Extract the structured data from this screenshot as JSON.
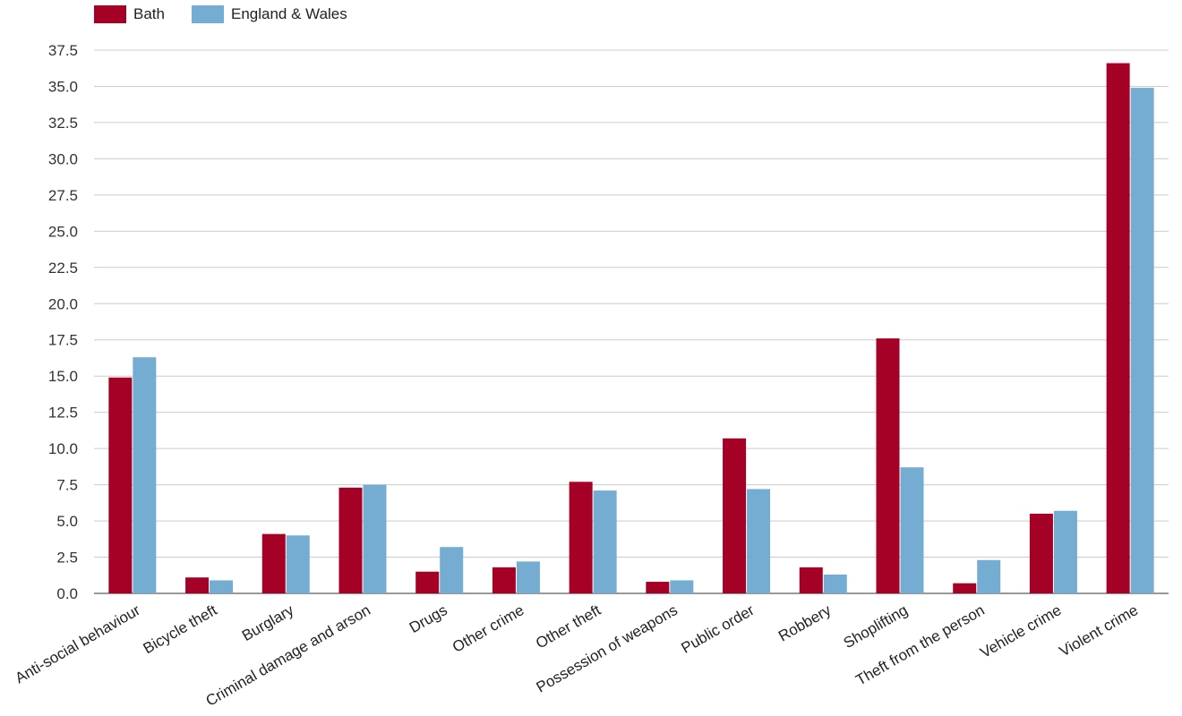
{
  "chart_data": {
    "type": "bar",
    "categories": [
      "Anti-social behaviour",
      "Bicycle theft",
      "Burglary",
      "Criminal damage and arson",
      "Drugs",
      "Other crime",
      "Other theft",
      "Possession of weapons",
      "Public order",
      "Robbery",
      "Shoplifting",
      "Theft from the person",
      "Vehicle crime",
      "Violent crime"
    ],
    "series": [
      {
        "name": "Bath",
        "color": "#a50026",
        "values": [
          14.9,
          1.1,
          4.1,
          7.3,
          1.5,
          1.8,
          7.7,
          0.8,
          10.7,
          1.8,
          17.6,
          0.7,
          5.5,
          36.6
        ]
      },
      {
        "name": "England & Wales",
        "color": "#74add1",
        "values": [
          16.3,
          0.9,
          4.0,
          7.5,
          3.2,
          2.2,
          7.1,
          0.9,
          7.2,
          1.3,
          8.7,
          2.3,
          5.7,
          34.9
        ]
      }
    ],
    "yticks": [
      "0.0",
      "2.5",
      "5.0",
      "7.5",
      "10.0",
      "12.5",
      "15.0",
      "17.5",
      "20.0",
      "22.5",
      "25.0",
      "27.5",
      "30.0",
      "32.5",
      "35.0",
      "37.5"
    ],
    "ylim": [
      0,
      37.5
    ],
    "title": "",
    "xlabel": "",
    "ylabel": "",
    "grid": true,
    "legend_position": "top-left"
  }
}
